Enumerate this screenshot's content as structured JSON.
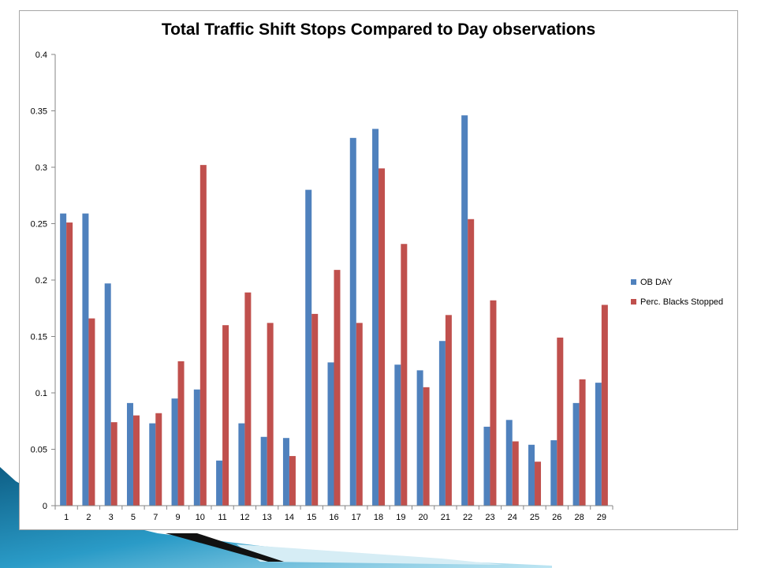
{
  "chart_data": {
    "type": "bar",
    "title": "Total Traffic Shift Stops Compared to Day observations",
    "xlabel": "",
    "ylabel": "",
    "categories": [
      "1",
      "2",
      "3",
      "5",
      "7",
      "9",
      "10",
      "11",
      "12",
      "13",
      "14",
      "15",
      "16",
      "17",
      "18",
      "19",
      "20",
      "21",
      "22",
      "23",
      "24",
      "25",
      "26",
      "28",
      "29"
    ],
    "series": [
      {
        "name": "OB DAY",
        "color": "#4f81bd",
        "values": [
          0.259,
          0.259,
          0.197,
          0.091,
          0.073,
          0.095,
          0.103,
          0.04,
          0.073,
          0.061,
          0.06,
          0.28,
          0.127,
          0.326,
          0.334,
          0.125,
          0.12,
          0.146,
          0.346,
          0.07,
          0.076,
          0.054,
          0.058,
          0.091,
          0.109
        ]
      },
      {
        "name": "Perc. Blacks Stopped",
        "color": "#c0504d",
        "values": [
          0.251,
          0.166,
          0.074,
          0.08,
          0.082,
          0.128,
          0.302,
          0.16,
          0.189,
          0.162,
          0.044,
          0.17,
          0.209,
          0.162,
          0.299,
          0.232,
          0.105,
          0.169,
          0.254,
          0.182,
          0.057,
          0.039,
          0.149,
          0.112,
          0.178
        ]
      }
    ],
    "ylim": [
      0,
      0.4
    ],
    "yticks": [
      "0",
      "0.05",
      "0.1",
      "0.15",
      "0.2",
      "0.25",
      "0.3",
      "0.35",
      "0.4"
    ],
    "grid": false,
    "legend_position": "right"
  },
  "decor": {
    "accent_color": "#1f7fb0",
    "light_color": "#c9e7f2"
  }
}
